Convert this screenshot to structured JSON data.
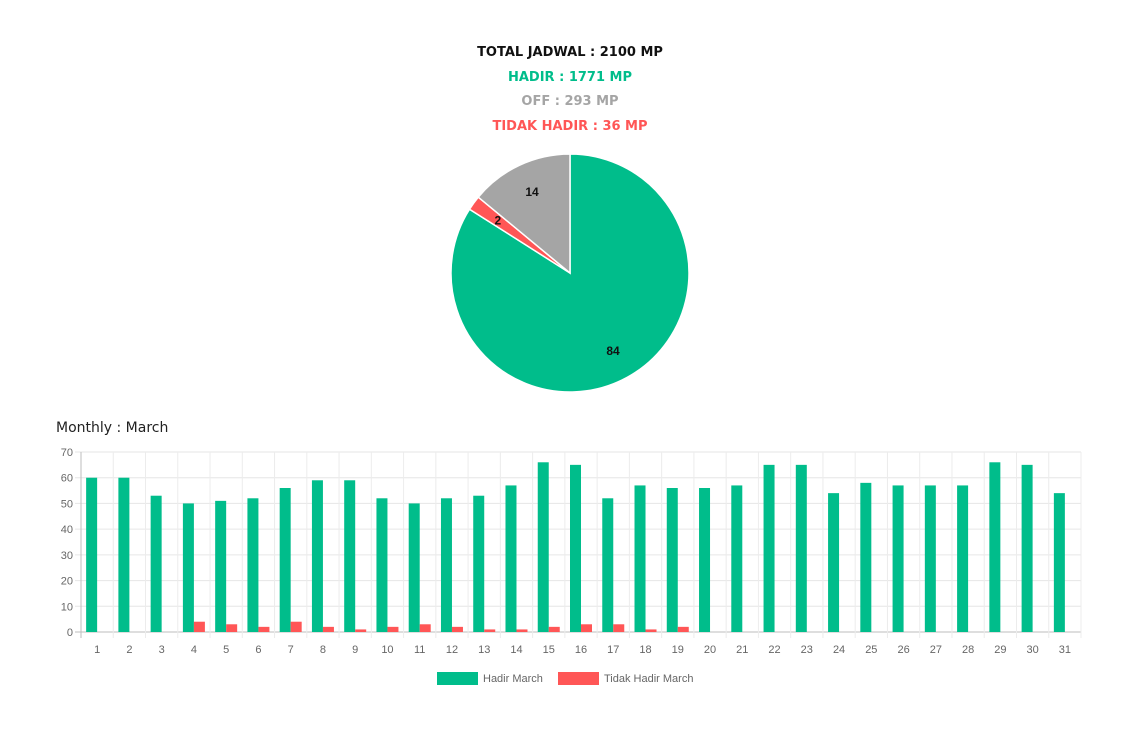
{
  "summary": {
    "total": "TOTAL JADWAL : 2100 MP",
    "hadir": "HADIR : 1771 MP",
    "off": "OFF : 293 MP",
    "tidak_hadir": "TIDAK HADIR : 36 MP"
  },
  "monthly_title": "Monthly : March",
  "colors": {
    "hadir": "#00bd8b",
    "tidak_hadir": "#ff5656",
    "off": "#a5a5a5"
  },
  "chart_data": [
    {
      "type": "pie",
      "title": "",
      "slices": [
        {
          "label": "Hadir",
          "value": 84,
          "color": "#00bd8b",
          "display": "84"
        },
        {
          "label": "Tidak Hadir",
          "value": 2,
          "color": "#ff5656",
          "display": "2"
        },
        {
          "label": "Off",
          "value": 14,
          "color": "#a5a5a5",
          "display": "14"
        }
      ]
    },
    {
      "type": "bar",
      "title": "",
      "xlabel": "",
      "ylabel": "",
      "ylim": [
        0,
        70
      ],
      "yticks": [
        0,
        10,
        20,
        30,
        40,
        50,
        60,
        70
      ],
      "grid": true,
      "legend_position": "bottom",
      "categories": [
        "1",
        "2",
        "3",
        "4",
        "5",
        "6",
        "7",
        "8",
        "9",
        "10",
        "11",
        "12",
        "13",
        "14",
        "15",
        "16",
        "17",
        "18",
        "19",
        "20",
        "21",
        "22",
        "23",
        "24",
        "25",
        "26",
        "27",
        "28",
        "29",
        "30",
        "31"
      ],
      "series": [
        {
          "name": "Hadir March",
          "color": "#00bd8b",
          "values": [
            60,
            60,
            53,
            50,
            51,
            52,
            56,
            59,
            59,
            52,
            50,
            52,
            53,
            57,
            66,
            65,
            52,
            57,
            56,
            56,
            57,
            65,
            65,
            54,
            58,
            57,
            57,
            57,
            66,
            65,
            54
          ]
        },
        {
          "name": "Tidak Hadir March",
          "color": "#ff5656",
          "values": [
            0,
            0,
            0,
            4,
            3,
            2,
            4,
            2,
            1,
            2,
            3,
            2,
            1,
            1,
            2,
            3,
            3,
            1,
            2,
            0,
            0,
            0,
            0,
            0,
            0,
            0,
            0,
            0,
            0,
            0,
            0
          ]
        }
      ]
    }
  ]
}
